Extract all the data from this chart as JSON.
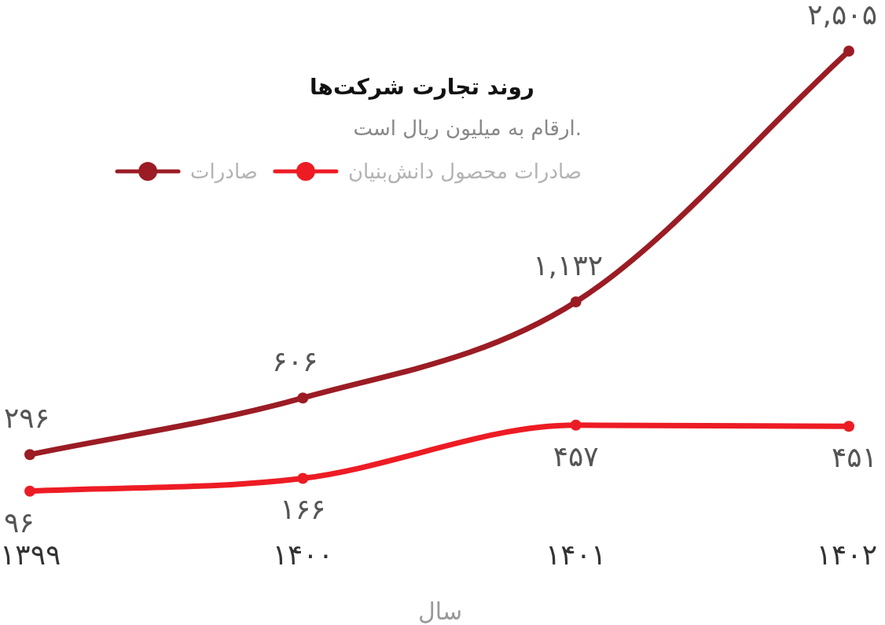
{
  "chart_data": {
    "type": "line",
    "title": "روند تجارت شرکت‌ها",
    "subtitle": "ارقام به میلیون ریال است.",
    "xlabel": "سال",
    "categories": [
      "۱۳۹۹",
      "۱۴۰۰",
      "۱۴۰۱",
      "۱۴۰۲"
    ],
    "series": [
      {
        "name": "صادرات محصول دانش‌بنیان",
        "color": "#ed1c24",
        "values": [
          96,
          166,
          457,
          451
        ],
        "value_labels": [
          "۹۶",
          "۱۶۶",
          "۴۵۷",
          "۴۵۱"
        ]
      },
      {
        "name": "صادرات",
        "color": "#9b1c24",
        "values": [
          296,
          606,
          1132,
          2505
        ],
        "value_labels": [
          "۲۹۶",
          "۶۰۶",
          "۱,۱۳۲",
          "۲,۵۰۵"
        ]
      }
    ],
    "legend": "top left",
    "marker": "circle",
    "line_style": "solid"
  }
}
